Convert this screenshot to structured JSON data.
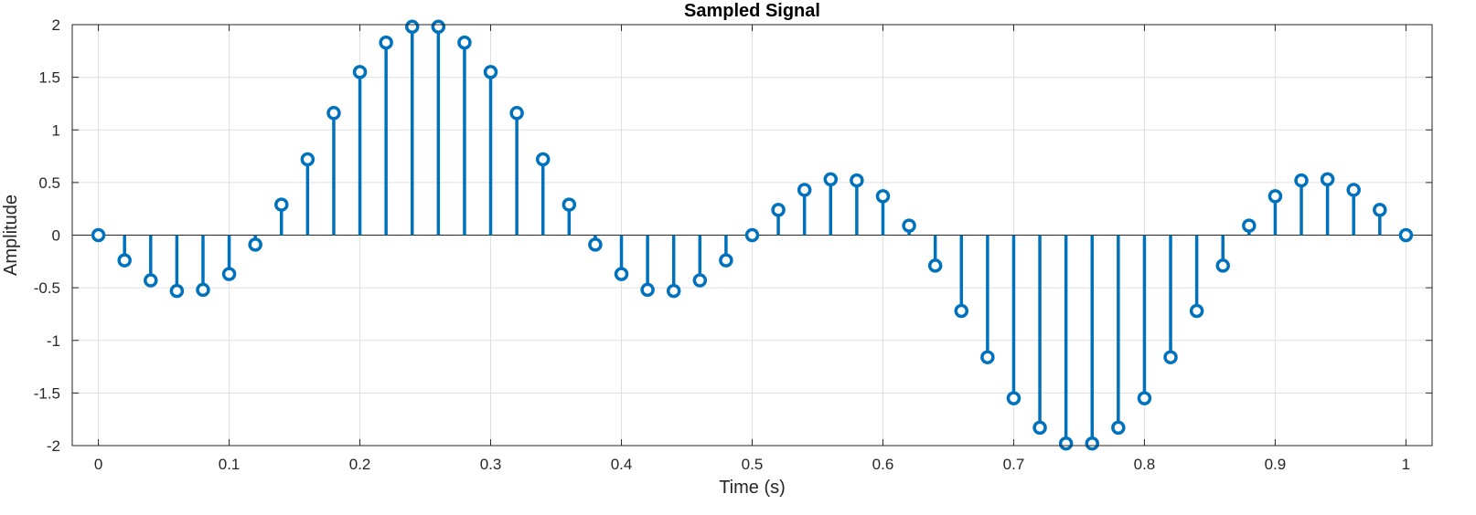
{
  "chart_data": {
    "type": "stem",
    "title": "Sampled Signal",
    "xlabel": "Time (s)",
    "ylabel": "Amplitude",
    "xlim": [
      -0.02,
      1.02
    ],
    "ylim": [
      -2,
      2
    ],
    "xticks": [
      0,
      0.1,
      0.2,
      0.3,
      0.4,
      0.5,
      0.6,
      0.7,
      0.8,
      0.9,
      1
    ],
    "xtick_labels": [
      "0",
      "0.1",
      "0.2",
      "0.3",
      "0.4",
      "0.5",
      "0.6",
      "0.7",
      "0.8",
      "0.9",
      "1"
    ],
    "yticks": [
      -2,
      -1.5,
      -1,
      -0.5,
      0,
      0.5,
      1,
      1.5,
      2
    ],
    "ytick_labels": [
      "-2",
      "-1.5",
      "-1",
      "-0.5",
      "0",
      "0.5",
      "1",
      "1.5",
      "2"
    ],
    "grid": true,
    "color": "#0072BD",
    "x": [
      0,
      0.02,
      0.04,
      0.06,
      0.08,
      0.1,
      0.12,
      0.14,
      0.16,
      0.18,
      0.2,
      0.22,
      0.24,
      0.26,
      0.28,
      0.3,
      0.32,
      0.34,
      0.36,
      0.38,
      0.4,
      0.42,
      0.44,
      0.46,
      0.48,
      0.5,
      0.52,
      0.54,
      0.56,
      0.58,
      0.6,
      0.62,
      0.64,
      0.66,
      0.68,
      0.7,
      0.72,
      0.74,
      0.76,
      0.78,
      0.8,
      0.82,
      0.84,
      0.86,
      0.88,
      0.9,
      0.92,
      0.94,
      0.96,
      0.98,
      1
    ],
    "y": [
      0,
      -0.24,
      -0.43,
      -0.53,
      -0.52,
      -0.37,
      -0.09,
      0.29,
      0.72,
      1.16,
      1.55,
      1.83,
      1.98,
      1.98,
      1.83,
      1.55,
      1.16,
      0.72,
      0.29,
      -0.09,
      -0.37,
      -0.52,
      -0.53,
      -0.43,
      -0.24,
      0,
      0.24,
      0.43,
      0.53,
      0.52,
      0.37,
      0.09,
      -0.29,
      -0.72,
      -1.16,
      -1.55,
      -1.83,
      -1.98,
      -1.98,
      -1.83,
      -1.55,
      -1.16,
      -0.72,
      -0.29,
      0.09,
      0.37,
      0.52,
      0.53,
      0.43,
      0.24,
      0
    ]
  }
}
